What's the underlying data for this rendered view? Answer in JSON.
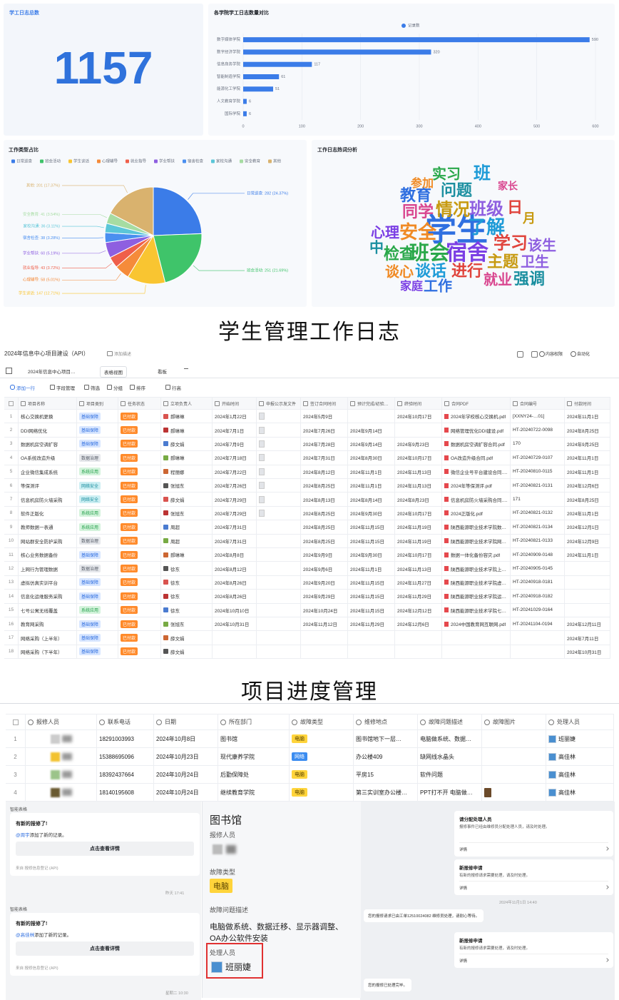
{
  "captions": [
    "学生管理工作日志",
    "项目进度管理"
  ],
  "log_total": {
    "title": "学工日志总数",
    "value": 1157
  },
  "chart_data": [
    {
      "type": "bar",
      "orientation": "horizontal",
      "title": "各学院学工日志数量对比",
      "categories": [
        "数字媒体学院",
        "数字经济学院",
        "信息商务学院",
        "智能制造学院",
        "能源化工学院",
        "人文教育学院",
        "国际学院"
      ],
      "series": [
        {
          "name": "记录数",
          "color": "#3b7ce8",
          "values": [
            590,
            320,
            117,
            61,
            51,
            6,
            6
          ]
        }
      ],
      "xlim": [
        0,
        600
      ],
      "xticks": [
        0,
        100,
        200,
        300,
        400,
        500,
        600
      ],
      "grid": true,
      "legend": "top"
    },
    {
      "type": "pie",
      "title": "工作类型占比",
      "categories": [
        "日常巡查",
        "班会活动",
        "学生谈话",
        "心理辅导",
        "就业指导",
        "学业帮扶",
        "宿舍检查",
        "家校沟通",
        "安全教育",
        "其他"
      ],
      "values": [
        282,
        251,
        147,
        58,
        43,
        60,
        38,
        36,
        41,
        201
      ],
      "value_labels": [
        "日常巡查: 282 (24.37%)",
        "班会活动: 251 (21.69%)",
        "学生谈话: 147 (12.71%)",
        "心理辅导: 58 (5.01%)",
        "就业指导: 43 (3.72%)",
        "学业帮扶: 60 (5.19%)",
        "宿舍检查: 38 (3.28%)",
        "家校沟通: 36 (3.11%)",
        "安全教育: 41 (3.54%)",
        "其他: 201 (17.37%)"
      ],
      "colors": [
        "#3b7ce8",
        "#3fc46a",
        "#f9c531",
        "#f58b3a",
        "#ef5f4a",
        "#8e5fe0",
        "#4a8ff0",
        "#5bc6d8",
        "#a6dca2",
        "#d9b26e"
      ],
      "legend": "top"
    }
  ],
  "word_cloud": {
    "title": "工作日志热词分析",
    "words": [
      {
        "text": "学生",
        "weight": 220
      },
      {
        "text": "宿舍",
        "weight": 150
      },
      {
        "text": "班会",
        "weight": 140
      },
      {
        "text": "安全",
        "weight": 130
      },
      {
        "text": "了解",
        "weight": 130
      },
      {
        "text": "学习",
        "weight": 120
      },
      {
        "text": "情况",
        "weight": 120
      },
      {
        "text": "班级",
        "weight": 120
      },
      {
        "text": "问题",
        "weight": 110
      },
      {
        "text": "同学",
        "weight": 110
      },
      {
        "text": "教育",
        "weight": 110
      },
      {
        "text": "心理",
        "weight": 100
      },
      {
        "text": "检查",
        "weight": 110
      },
      {
        "text": "谈心",
        "weight": 100
      },
      {
        "text": "谈话",
        "weight": 110
      },
      {
        "text": "进行",
        "weight": 110
      },
      {
        "text": "主题",
        "weight": 110
      },
      {
        "text": "卫生",
        "weight": 100
      },
      {
        "text": "强调",
        "weight": 110
      },
      {
        "text": "就业",
        "weight": 100
      },
      {
        "text": "工作",
        "weight": 100
      },
      {
        "text": "家庭",
        "weight": 80
      },
      {
        "text": "实习",
        "weight": 100
      },
      {
        "text": "参加",
        "weight": 80
      },
      {
        "text": "班",
        "weight": 120
      },
      {
        "text": "日",
        "weight": 110
      },
      {
        "text": "月",
        "weight": 90
      },
      {
        "text": "该生",
        "weight": 100
      },
      {
        "text": "中",
        "weight": 100
      },
      {
        "text": "家长",
        "weight": 70
      }
    ]
  },
  "project_sheet": {
    "title": "2024年信息中心项目建设（API）",
    "description": "添加描述",
    "tabs": [
      "2024年信息中心项目…",
      "表格视图",
      "看板"
    ],
    "toolbar": [
      "添加一行",
      "字段管理",
      "筛选",
      "分组",
      "排序",
      "行高"
    ],
    "actions": [
      "内容权限",
      "自动化"
    ],
    "tag_styles": [
      {
        "text": "基础保障",
        "bg": "#d8e6ff",
        "fg": "#2f6fe0"
      },
      {
        "text": "网络安全",
        "bg": "#cdeff3",
        "fg": "#1b8fa0"
      },
      {
        "text": "系统应用",
        "bg": "#d4f3dc",
        "fg": "#23a04a"
      },
      {
        "text": "数据治理",
        "bg": "#e6e8ec",
        "fg": "#555b66"
      },
      {
        "text": "已付款",
        "bg": "#ff8a2a",
        "fg": "#ffffff"
      }
    ],
    "columns": [
      null,
      "项目名称",
      "项目类别",
      "任务状态",
      "立项负责人",
      "开始时间",
      "申报公示发文件",
      "签订合同时间",
      "预计完成/初验时间",
      "终验时间",
      "合同PDF",
      "合同编号",
      "付款时间"
    ],
    "rows": [
      [
        "1",
        "核心交换机更换",
        "基础保障",
        "已付款",
        "郝琳琳",
        "2024年1月22日",
        null,
        "2024年5月9日",
        null,
        "2024年10月17日",
        "2024年学校核心交换机.pdf",
        "[XXNY24-…01]",
        "2024年11月1日"
      ],
      [
        "2",
        "DDI网络优化",
        "基础保障",
        "已付款",
        "郝琳琳",
        "2024年7月1日",
        null,
        "2024年7月26日",
        "2024年9月14日",
        null,
        "网络管理优化DDI建设.pdf",
        "HT-20240722-0098",
        "2024年8月25日"
      ],
      [
        "3",
        "数据机房空调扩容",
        "基础保障",
        "已付款",
        "薛文娟",
        "2024年7月9日",
        null,
        "2024年7月28日",
        "2024年9月14日",
        "2024年9月23日",
        "数据机房空调扩容合同.pdf",
        "170",
        "2024年9月25日"
      ],
      [
        "4",
        "OA系统改造升级",
        "数据治理",
        "已付款",
        "郝琳琳",
        "2024年7月18日",
        null,
        "2024年7月31日",
        "2024年8月30日",
        "2024年10月17日",
        "OA改造升级合同.pdf",
        "HT-20240729-0107",
        "2024年11月1日"
      ],
      [
        "5",
        "企业微信集成系统",
        "系统应用",
        "已付款",
        "程丽娜",
        "2024年7月22日",
        null,
        "2024年8月12日",
        "2024年11月1日",
        "2024年11月13日",
        "微信企业号平台建设合同.pdf",
        "HT-20240810-0115",
        "2024年11月1日"
      ],
      [
        "6",
        "等保测评",
        "网络安全",
        "已付款",
        "张旭东",
        "2024年7月26日",
        null,
        "2024年8月25日",
        "2024年11月1日",
        "2024年11月13日",
        "2024年等保测评.pdf",
        "HT-20240821-0131",
        "2024年12月6日"
      ],
      [
        "7",
        "信息机房防火墙采购",
        "网络安全",
        "已付款",
        "薛文娟",
        "2024年7月29日",
        null,
        "2024年8月13日",
        "2024年8月14日",
        "2024年8月23日",
        "信息机房防火墙采购合同.pdf",
        "171",
        "2024年8月25日"
      ],
      [
        "8",
        "软件正版化",
        "系统应用",
        "已付款",
        "张旭东",
        "2024年7月29日",
        null,
        "2024年8月25日",
        "2024年9月30日",
        "2024年10月17日",
        "2024正版化.pdf",
        "HT-20240821-0132",
        "2024年11月1日"
      ],
      [
        "9",
        "教师数据一表通",
        "系统应用",
        "已付款",
        "周超",
        "2024年7月31日",
        null,
        "2024年8月25日",
        "2024年11月15日",
        "2024年11月19日",
        "陕西能源职业技术学院数据.pdf",
        "HT-20240821-0134",
        "2024年12月1日"
      ],
      [
        "10",
        "网站群安全防护采购",
        "数据治理",
        "已付款",
        "周超",
        "2024年7月31日",
        null,
        "2024年8月25日",
        "2024年11月15日",
        "2024年11月19日",
        "陕西能源职业技术学院网站群.pdf",
        "HT-20240821-0133",
        "2024年12月9日"
      ],
      [
        "11",
        "核心业务数据备份",
        "基础保障",
        "已付款",
        "郝琳琳",
        "2024年8月8日",
        null,
        "2024年9月9日",
        "2024年9月30日",
        "2024年10月17日",
        "数据一体化备份容灾.pdf",
        "HT-20240909-0148",
        "2024年11月1日"
      ],
      [
        "12",
        "上网行为管理数据",
        "数据治理",
        "已付款",
        "徐东",
        "2024年8月12日",
        null,
        "2024年9月6日",
        "2024年11月1日",
        "2024年11月13日",
        "陕西能源职业技术学院上网.pdf",
        "HT-20240905-0145",
        null
      ],
      [
        "13",
        "虚拟仿真实训平台",
        "基础保障",
        "已付款",
        "徐东",
        "2024年8月26日",
        null,
        "2024年9月20日",
        "2024年11月15日",
        "2024年11月27日",
        "陕西能源职业技术学院虚拟.pdf",
        "HT-20240918-0181",
        null
      ],
      [
        "14",
        "信息化运维服务采购",
        "基础保障",
        "已付款",
        "徐东",
        "2024年8月26日",
        null,
        "2024年9月29日",
        "2024年11月15日",
        "2024年11月29日",
        "陕西能源职业技术学院运维.pdf",
        "HT-20240918-0182",
        null
      ],
      [
        "15",
        "七号公寓无线覆盖",
        "系统应用",
        "已付款",
        "徐东",
        "2024年10月10日",
        null,
        "2024年10月24日",
        "2024年11月15日",
        "2024年12月12日",
        "陕西能源职业技术学院七号.pdf",
        "HT-20241029-0164",
        null
      ],
      [
        "16",
        "教育网采购",
        "基础保障",
        "已付款",
        "张旭东",
        "2024年10月31日",
        null,
        "2024年11月12日",
        "2024年11月29日",
        "2024年12月6日",
        "2024中国教育网互联网.pdf",
        "HT-20241104-0194",
        "2024年12月11日"
      ],
      [
        "17",
        "网络采购（上半年）",
        "基础保障",
        "已付款",
        "薛文娟",
        null,
        null,
        null,
        null,
        null,
        null,
        null,
        "2024年7月11日"
      ],
      [
        "18",
        "网络采购（下半年）",
        "基础保障",
        "已付款",
        "薛文娟",
        null,
        null,
        null,
        null,
        null,
        null,
        null,
        "2024年10月31日"
      ]
    ]
  },
  "repair_sheet": {
    "tag_styles": [
      {
        "text": "电脑",
        "bg": "#ffd43b",
        "fg": "#5a4300"
      },
      {
        "text": "网络",
        "bg": "#3b8cf0",
        "fg": "#ffffff"
      }
    ],
    "columns": [
      null,
      "报修人员",
      "联系电话",
      "日期",
      "所在部门",
      "故障类型",
      "维修地点",
      "故障问题描述",
      "故障图片",
      "处理人员"
    ],
    "rows": [
      [
        "1",
        null,
        "18291003993",
        "2024年10月8日",
        "图书馆",
        "电脑",
        "图书馆地下一层…",
        "电脑做系统、数据…",
        null,
        "班丽婕"
      ],
      [
        "2",
        null,
        "15388695096",
        "2024年10月23日",
        "现代康养学院",
        "网络",
        "办公楼409",
        "缺网线水晶头",
        null,
        "高佳林"
      ],
      [
        "3",
        null,
        "18392437664",
        "2024年10月24日",
        "后勤保障处",
        "电脑",
        "平房15",
        "软件问题",
        null,
        "高佳林"
      ],
      [
        "4",
        null,
        "18140195608",
        "2024年10月24日",
        "继续教育学院",
        "电脑",
        "第三实训室办公楼…",
        "PPT打不开 电脑做…",
        null,
        "高佳林"
      ]
    ]
  },
  "chat": {
    "left_messages": [
      {
        "sender": "智能表格",
        "title": "有新的报修了!",
        "mention": "@周宇",
        "text": "添加了新的记录。",
        "button": "点击查看详情",
        "source": "来自 报修信息登记 (API)",
        "time": "昨天 17:41"
      },
      {
        "sender": "智能表格",
        "title": "有新的报修了!",
        "mention": "@高佳林",
        "text": "添加了新的记录。",
        "button": "点击查看详情",
        "source": "来自 报修信息登记 (API)",
        "time": "星期二 10:30"
      }
    ],
    "detail": {
      "title": "图书馆",
      "fields": [
        {
          "label": "报修人员",
          "value": null
        },
        {
          "label": "故障类型",
          "value": "电脑"
        },
        {
          "label": "故障问题描述",
          "value": "电脑做系统、数据迁移、显示器调整、OA办公软件安装"
        },
        {
          "label": "处理人员",
          "value": "班丽婕"
        }
      ]
    },
    "right_cards": [
      {
        "title": "请分配处理人员",
        "text": "报修事件已经由维修员分配处理人员，请及时处理。",
        "link": "详情"
      },
      {
        "title": "新报修申请",
        "text": "有新的报修请求需要处理，请及时处理。",
        "link": "详情"
      },
      {
        "title": "新报修申请",
        "text": "有新的报修请求需要处理，请及时处理。",
        "link": "详情"
      }
    ],
    "right_time": "2024年11月1日 14:40",
    "right_bubbles": [
      "您的报修请求已由工单12510024082 维修员处理，请耐心等待。",
      "您的报修已处理完毕。"
    ]
  }
}
